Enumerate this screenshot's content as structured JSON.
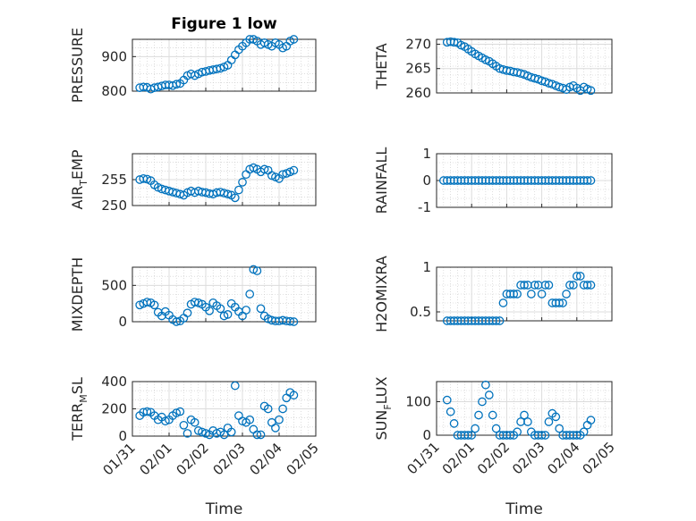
{
  "figure_title": "Figure 1 low",
  "marker_color": "#0072BD",
  "x_tick_labels": [
    "01/31",
    "02/01",
    "02/02",
    "02/03",
    "02/04",
    "02/05"
  ],
  "x_axis_label": "Time",
  "chart_data": [
    {
      "type": "scatter",
      "title": "Figure 1 low",
      "ylabel": "PRESSURE",
      "ylim": [
        800,
        950
      ],
      "yticks": [
        800,
        900
      ],
      "ytick_labels": [
        "800",
        "900"
      ],
      "xlim": [
        0,
        5
      ],
      "grid": true,
      "x": [
        0.2,
        0.3,
        0.4,
        0.5,
        0.6,
        0.7,
        0.8,
        0.9,
        1.0,
        1.1,
        1.2,
        1.3,
        1.4,
        1.5,
        1.6,
        1.7,
        1.8,
        1.9,
        2.0,
        2.1,
        2.2,
        2.3,
        2.4,
        2.5,
        2.6,
        2.7,
        2.8,
        2.9,
        3.0,
        3.1,
        3.2,
        3.3,
        3.4,
        3.5,
        3.6,
        3.7,
        3.8,
        3.9,
        4.0,
        4.1,
        4.2,
        4.3,
        4.4
      ],
      "y": [
        810,
        812,
        811,
        806,
        810,
        812,
        815,
        818,
        818,
        816,
        820,
        822,
        832,
        845,
        850,
        845,
        850,
        855,
        857,
        860,
        862,
        864,
        866,
        870,
        875,
        890,
        905,
        920,
        930,
        940,
        950,
        950,
        945,
        935,
        940,
        935,
        930,
        940,
        935,
        925,
        930,
        945,
        950
      ]
    },
    {
      "type": "scatter",
      "ylabel": "THETA",
      "ylim": [
        260,
        271
      ],
      "yticks": [
        260,
        265,
        270
      ],
      "ytick_labels": [
        "260",
        "265",
        "270"
      ],
      "xlim": [
        0,
        5
      ],
      "grid": true,
      "x": [
        0.3,
        0.4,
        0.5,
        0.6,
        0.7,
        0.8,
        0.9,
        1.0,
        1.1,
        1.2,
        1.3,
        1.4,
        1.5,
        1.6,
        1.7,
        1.8,
        1.9,
        2.0,
        2.1,
        2.2,
        2.3,
        2.4,
        2.5,
        2.6,
        2.7,
        2.8,
        2.9,
        3.0,
        3.1,
        3.2,
        3.3,
        3.4,
        3.5,
        3.6,
        3.7,
        3.8,
        3.9,
        4.0,
        4.1,
        4.2,
        4.3,
        4.4
      ],
      "y": [
        270.4,
        270.5,
        270.4,
        270.3,
        269.8,
        269.5,
        269.0,
        268.5,
        268.0,
        267.6,
        267.2,
        266.8,
        266.5,
        266.0,
        265.5,
        265.0,
        264.8,
        264.6,
        264.5,
        264.3,
        264.2,
        264.0,
        263.8,
        263.5,
        263.2,
        263.0,
        262.8,
        262.5,
        262.3,
        262.0,
        261.8,
        261.5,
        261.2,
        261.0,
        260.7,
        261.2,
        261.5,
        261.0,
        260.5,
        261.2,
        260.8,
        260.5
      ]
    },
    {
      "type": "scatter",
      "ylabel": "AIR_TEMP",
      "ylabel_main": "AIR",
      "ylabel_sub": "T",
      "ylabel_tail": "EMP",
      "ylim": [
        250,
        260
      ],
      "yticks": [
        250,
        255
      ],
      "ytick_labels": [
        "250",
        "255"
      ],
      "xlim": [
        0,
        5
      ],
      "grid": true,
      "x": [
        0.2,
        0.3,
        0.4,
        0.5,
        0.6,
        0.7,
        0.8,
        0.9,
        1.0,
        1.1,
        1.2,
        1.3,
        1.4,
        1.5,
        1.6,
        1.7,
        1.8,
        1.9,
        2.0,
        2.1,
        2.2,
        2.3,
        2.4,
        2.5,
        2.6,
        2.7,
        2.8,
        2.9,
        3.0,
        3.1,
        3.2,
        3.3,
        3.4,
        3.5,
        3.6,
        3.7,
        3.8,
        3.9,
        4.0,
        4.1,
        4.2,
        4.3,
        4.4
      ],
      "y": [
        255.0,
        255.2,
        255.1,
        254.8,
        254.0,
        253.5,
        253.2,
        253.0,
        252.8,
        252.6,
        252.4,
        252.2,
        252.0,
        252.5,
        252.8,
        252.5,
        252.8,
        252.6,
        252.5,
        252.3,
        252.2,
        252.5,
        252.6,
        252.4,
        252.2,
        252.0,
        251.5,
        253.0,
        254.5,
        256.0,
        257.0,
        257.3,
        257.0,
        256.5,
        257.0,
        256.8,
        255.8,
        255.5,
        255.2,
        256.0,
        256.2,
        256.5,
        256.8
      ]
    },
    {
      "type": "scatter",
      "ylabel": "RAINFALL",
      "ylim": [
        -1,
        1
      ],
      "yticks": [
        -1,
        0,
        1
      ],
      "ytick_labels": [
        "-1",
        "0",
        "1"
      ],
      "xlim": [
        0,
        5
      ],
      "grid": true,
      "x": [
        0.2,
        0.3,
        0.4,
        0.5,
        0.6,
        0.7,
        0.8,
        0.9,
        1.0,
        1.1,
        1.2,
        1.3,
        1.4,
        1.5,
        1.6,
        1.7,
        1.8,
        1.9,
        2.0,
        2.1,
        2.2,
        2.3,
        2.4,
        2.5,
        2.6,
        2.7,
        2.8,
        2.9,
        3.0,
        3.1,
        3.2,
        3.3,
        3.4,
        3.5,
        3.6,
        3.7,
        3.8,
        3.9,
        4.0,
        4.1,
        4.2,
        4.3,
        4.4
      ],
      "y": [
        0,
        0,
        0,
        0,
        0,
        0,
        0,
        0,
        0,
        0,
        0,
        0,
        0,
        0,
        0,
        0,
        0,
        0,
        0,
        0,
        0,
        0,
        0,
        0,
        0,
        0,
        0,
        0,
        0,
        0,
        0,
        0,
        0,
        0,
        0,
        0,
        0,
        0,
        0,
        0,
        0,
        0,
        0
      ]
    },
    {
      "type": "scatter",
      "ylabel": "MIXDEPTH",
      "ylim": [
        0,
        750
      ],
      "yticks": [
        0,
        500
      ],
      "ytick_labels": [
        "0",
        "500"
      ],
      "xlim": [
        0,
        5
      ],
      "grid": true,
      "x": [
        0.2,
        0.3,
        0.4,
        0.5,
        0.6,
        0.7,
        0.8,
        0.9,
        1.0,
        1.1,
        1.2,
        1.3,
        1.4,
        1.5,
        1.6,
        1.7,
        1.8,
        1.9,
        2.0,
        2.1,
        2.2,
        2.3,
        2.4,
        2.5,
        2.6,
        2.7,
        2.8,
        2.9,
        3.0,
        3.1,
        3.2,
        3.3,
        3.4,
        3.5,
        3.6,
        3.7,
        3.8,
        3.9,
        4.0,
        4.1,
        4.2,
        4.3,
        4.4
      ],
      "y": [
        230,
        250,
        270,
        260,
        230,
        130,
        80,
        140,
        90,
        30,
        0,
        10,
        50,
        120,
        240,
        270,
        260,
        240,
        200,
        150,
        260,
        220,
        180,
        80,
        100,
        250,
        200,
        140,
        80,
        160,
        380,
        720,
        700,
        180,
        80,
        40,
        20,
        10,
        10,
        20,
        10,
        5,
        0
      ]
    },
    {
      "type": "scatter",
      "ylabel": "H2OMIXRA",
      "ylim": [
        0.4,
        1.0
      ],
      "yticks": [
        0.5,
        1.0
      ],
      "ytick_labels": [
        "0.5",
        "1"
      ],
      "xlim": [
        0,
        5
      ],
      "grid": true,
      "x": [
        0.3,
        0.4,
        0.5,
        0.6,
        0.7,
        0.8,
        0.9,
        1.0,
        1.1,
        1.2,
        1.3,
        1.4,
        1.5,
        1.6,
        1.7,
        1.8,
        1.9,
        2.0,
        2.1,
        2.2,
        2.3,
        2.4,
        2.5,
        2.6,
        2.7,
        2.8,
        2.9,
        3.0,
        3.1,
        3.2,
        3.3,
        3.4,
        3.5,
        3.6,
        3.7,
        3.8,
        3.9,
        4.0,
        4.1,
        4.2,
        4.3,
        4.4
      ],
      "y": [
        0.4,
        0.4,
        0.4,
        0.4,
        0.4,
        0.4,
        0.4,
        0.4,
        0.4,
        0.4,
        0.4,
        0.4,
        0.4,
        0.4,
        0.4,
        0.4,
        0.6,
        0.7,
        0.7,
        0.7,
        0.7,
        0.8,
        0.8,
        0.8,
        0.7,
        0.8,
        0.8,
        0.7,
        0.8,
        0.8,
        0.6,
        0.6,
        0.6,
        0.6,
        0.7,
        0.8,
        0.8,
        0.9,
        0.9,
        0.8,
        0.8,
        0.8
      ]
    },
    {
      "type": "scatter",
      "ylabel": "TERR_MSL",
      "ylabel_main": "TERR",
      "ylabel_sub": "M",
      "ylabel_tail": "SL",
      "ylim": [
        0,
        400
      ],
      "yticks": [
        0,
        200,
        400
      ],
      "ytick_labels": [
        "0",
        "200",
        "400"
      ],
      "xlim": [
        0,
        5
      ],
      "grid": true,
      "x": [
        0.2,
        0.3,
        0.4,
        0.5,
        0.6,
        0.7,
        0.8,
        0.9,
        1.0,
        1.1,
        1.2,
        1.3,
        1.4,
        1.5,
        1.6,
        1.7,
        1.8,
        1.9,
        2.0,
        2.1,
        2.2,
        2.3,
        2.4,
        2.5,
        2.6,
        2.7,
        2.8,
        2.9,
        3.0,
        3.1,
        3.2,
        3.3,
        3.4,
        3.5,
        3.6,
        3.7,
        3.8,
        3.9,
        4.0,
        4.1,
        4.2,
        4.3,
        4.4
      ],
      "y": [
        150,
        175,
        180,
        175,
        150,
        120,
        140,
        110,
        120,
        150,
        170,
        180,
        80,
        20,
        120,
        100,
        40,
        30,
        20,
        10,
        40,
        20,
        30,
        10,
        60,
        30,
        370,
        150,
        110,
        100,
        120,
        50,
        10,
        10,
        220,
        200,
        100,
        60,
        120,
        200,
        280,
        320,
        300
      ]
    },
    {
      "type": "scatter",
      "ylabel": "SUN_FLUX",
      "ylabel_main": "SUN",
      "ylabel_sub": "F",
      "ylabel_tail": "LUX",
      "ylim": [
        0,
        160
      ],
      "yticks": [
        0,
        100
      ],
      "ytick_labels": [
        "0",
        "100"
      ],
      "xlim": [
        0,
        5
      ],
      "grid": true,
      "x": [
        0.3,
        0.4,
        0.5,
        0.6,
        0.7,
        0.8,
        0.9,
        1.0,
        1.1,
        1.2,
        1.3,
        1.4,
        1.5,
        1.6,
        1.7,
        1.8,
        1.9,
        2.0,
        2.1,
        2.2,
        2.3,
        2.4,
        2.5,
        2.6,
        2.7,
        2.8,
        2.9,
        3.0,
        3.1,
        3.2,
        3.3,
        3.4,
        3.5,
        3.6,
        3.7,
        3.8,
        3.9,
        4.0,
        4.1,
        4.2,
        4.3,
        4.4
      ],
      "y": [
        105,
        70,
        35,
        0,
        0,
        0,
        0,
        0,
        20,
        60,
        100,
        150,
        120,
        60,
        20,
        0,
        0,
        0,
        0,
        0,
        10,
        40,
        60,
        40,
        10,
        0,
        0,
        0,
        0,
        40,
        65,
        55,
        20,
        0,
        0,
        0,
        0,
        0,
        0,
        10,
        30,
        45
      ]
    }
  ]
}
